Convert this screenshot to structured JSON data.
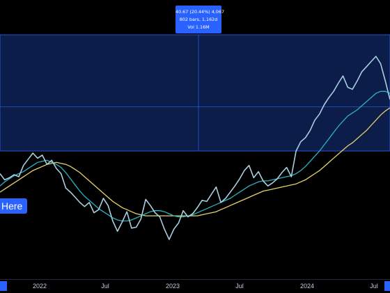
{
  "tooltip": {
    "line1": "40.67 (20.44%) 4,067",
    "line2": "802 bars, 1,162d",
    "line3": "Vol 1.16M"
  },
  "button": {
    "label": "Here"
  },
  "colors": {
    "price": "#a8cfe0",
    "ma_fast": "#2bb3c0",
    "ma_slow": "#e6d36a",
    "selection_fill": "#0c1d49",
    "selection_border": "#2962ff",
    "accent": "#2962ff"
  },
  "chart_data": {
    "type": "line",
    "title": "",
    "xlabel": "",
    "ylabel": "",
    "x_ticks": [
      "2022",
      "Jul",
      "2023",
      "Jul",
      "2024",
      "Jul"
    ],
    "grid": false,
    "series": [
      {
        "values": [
          0.58,
          0.52,
          0.54,
          0.57,
          0.55,
          0.66,
          0.72,
          0.78,
          0.73,
          0.76,
          0.67,
          0.71,
          0.63,
          0.58,
          0.44,
          0.4,
          0.35,
          0.3,
          0.26,
          0.3,
          0.2,
          0.23,
          0.34,
          0.27,
          0.12,
          0.02,
          0.11,
          0.21,
          0.05,
          0.06,
          0.14,
          0.33,
          0.27,
          0.2,
          0.16,
          0.04,
          -0.06,
          0.04,
          0.1,
          0.22,
          0.16,
          0.19,
          0.25,
          0.32,
          0.31,
          0.38,
          0.45,
          0.3,
          0.34,
          0.4,
          0.46,
          0.53,
          0.61,
          0.66,
          0.54,
          0.6,
          0.51,
          0.46,
          0.49,
          0.53,
          0.59,
          0.64,
          0.55,
          0.8,
          0.89,
          0.93,
          1.0,
          1.1,
          1.16,
          1.25,
          1.32,
          1.38,
          1.46,
          1.53,
          1.42,
          1.4,
          1.48,
          1.57,
          1.62,
          1.67,
          1.72,
          1.65,
          1.48,
          1.3
        ]
      },
      {
        "values": [
          0.46,
          0.5,
          0.53,
          0.56,
          0.58,
          0.6,
          0.63,
          0.66,
          0.69,
          0.7,
          0.71,
          0.69,
          0.67,
          0.64,
          0.59,
          0.53,
          0.47,
          0.41,
          0.36,
          0.32,
          0.28,
          0.24,
          0.21,
          0.18,
          0.15,
          0.13,
          0.12,
          0.12,
          0.13,
          0.15,
          0.17,
          0.19,
          0.21,
          0.22,
          0.22,
          0.21,
          0.19,
          0.17,
          0.16,
          0.16,
          0.17,
          0.18,
          0.2,
          0.22,
          0.24,
          0.26,
          0.28,
          0.3,
          0.32,
          0.34,
          0.37,
          0.4,
          0.43,
          0.46,
          0.48,
          0.5,
          0.51,
          0.51,
          0.52,
          0.53,
          0.54,
          0.55,
          0.56,
          0.58,
          0.61,
          0.65,
          0.7,
          0.75,
          0.8,
          0.86,
          0.92,
          0.98,
          1.04,
          1.09,
          1.14,
          1.17,
          1.2,
          1.24,
          1.28,
          1.32,
          1.36,
          1.38,
          1.38,
          1.36
        ]
      },
      {
        "values": [
          0.4,
          0.43,
          0.46,
          0.49,
          0.52,
          0.55,
          0.58,
          0.61,
          0.63,
          0.65,
          0.67,
          0.68,
          0.69,
          0.68,
          0.67,
          0.65,
          0.62,
          0.59,
          0.55,
          0.51,
          0.47,
          0.43,
          0.39,
          0.35,
          0.31,
          0.28,
          0.25,
          0.23,
          0.21,
          0.19,
          0.18,
          0.17,
          0.17,
          0.17,
          0.17,
          0.17,
          0.17,
          0.17,
          0.17,
          0.17,
          0.17,
          0.17,
          0.17,
          0.18,
          0.19,
          0.2,
          0.21,
          0.23,
          0.25,
          0.27,
          0.29,
          0.31,
          0.33,
          0.35,
          0.37,
          0.39,
          0.41,
          0.42,
          0.43,
          0.44,
          0.45,
          0.46,
          0.47,
          0.48,
          0.5,
          0.52,
          0.55,
          0.58,
          0.61,
          0.65,
          0.69,
          0.73,
          0.77,
          0.81,
          0.85,
          0.88,
          0.92,
          0.96,
          1.0,
          1.05,
          1.1,
          1.15,
          1.19,
          1.22
        ]
      }
    ],
    "selection": {
      "y_range": [
        0.8,
        1.93
      ]
    }
  }
}
